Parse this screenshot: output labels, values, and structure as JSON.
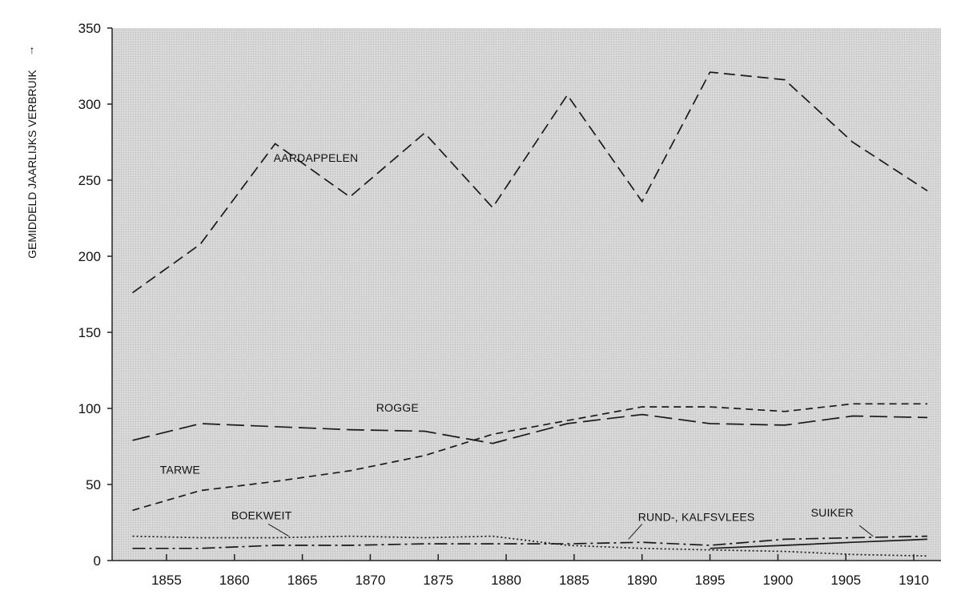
{
  "chart_data": {
    "type": "line",
    "title": "",
    "xlabel": "",
    "ylabel": "GEMIDDELD JAARLIJKS VERBRUIK",
    "ylabel_arrow": "↑",
    "xlim": [
      1851,
      1912
    ],
    "ylim": [
      0,
      350
    ],
    "x_ticks": [
      1855,
      1860,
      1865,
      1870,
      1875,
      1880,
      1885,
      1890,
      1895,
      1900,
      1905,
      1910
    ],
    "y_ticks": [
      0,
      50,
      100,
      150,
      200,
      250,
      300,
      350
    ],
    "grid": false,
    "background": "#d6d6d6",
    "series": [
      {
        "name": "AARDAPPELEN",
        "dash": "long",
        "x": [
          1852.5,
          1857.5,
          1863,
          1868.5,
          1874,
          1879,
          1884.5,
          1890,
          1895,
          1900.5,
          1905.5,
          1911
        ],
        "y": [
          176,
          208,
          274,
          239,
          281,
          232,
          306,
          236,
          321,
          316,
          275,
          243
        ]
      },
      {
        "name": "ROGGE",
        "dash": "medium",
        "x": [
          1852.5,
          1857.5,
          1863,
          1868.5,
          1874,
          1879,
          1884.5,
          1890,
          1895,
          1900.5,
          1905.5,
          1911
        ],
        "y": [
          79,
          90,
          88,
          86,
          85,
          77,
          90,
          96,
          90,
          89,
          95,
          94
        ]
      },
      {
        "name": "TARWE",
        "dash": "short",
        "x": [
          1852.5,
          1857.5,
          1863,
          1868.5,
          1874,
          1879,
          1884.5,
          1890,
          1895,
          1900.5,
          1905.5,
          1911
        ],
        "y": [
          33,
          46,
          52,
          59,
          69,
          83,
          92,
          101,
          101,
          98,
          103,
          103
        ]
      },
      {
        "name": "BOEKWEIT",
        "dash": "dotted",
        "x": [
          1852.5,
          1857.5,
          1863,
          1868.5,
          1874,
          1879,
          1884.5,
          1890,
          1895,
          1900.5,
          1905.5,
          1911
        ],
        "y": [
          16,
          15,
          15,
          16,
          15,
          16,
          10,
          8,
          7,
          6,
          4,
          3
        ]
      },
      {
        "name": "RUND-, KALFSVLEES",
        "dash": "dashdot",
        "x": [
          1852.5,
          1857.5,
          1863,
          1868.5,
          1874,
          1879,
          1884.5,
          1890,
          1895,
          1900.5,
          1905.5,
          1911
        ],
        "y": [
          8,
          8,
          10,
          10,
          11,
          11,
          11,
          12,
          10,
          14,
          15,
          16
        ]
      },
      {
        "name": "SUIKER",
        "dash": "solid",
        "x": [
          1895,
          1900.5,
          1905.5,
          1911
        ],
        "y": [
          8,
          10,
          12,
          14
        ]
      }
    ],
    "annotations": [
      {
        "series": "AARDAPPELEN",
        "text": "AARDAPPELEN"
      },
      {
        "series": "ROGGE",
        "text": "ROGGE"
      },
      {
        "series": "TARWE",
        "text": "TARWE"
      },
      {
        "series": "BOEKWEIT",
        "text": "BOEKWEIT"
      },
      {
        "series": "RUND-, KALFSVLEES",
        "text": "RUND-, KALFSVLEES"
      },
      {
        "series": "SUIKER",
        "text": "SUIKER"
      }
    ]
  }
}
